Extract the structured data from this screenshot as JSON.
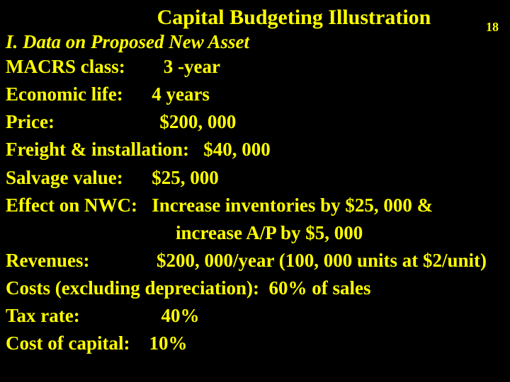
{
  "slide": {
    "title": "Capital Budgeting Illustration",
    "page_number": "18",
    "subtitle": "I. Data on Proposed New Asset",
    "rows": [
      {
        "label": "MACRS class:        3 -year"
      },
      {
        "label": "Economic life:      4 years"
      },
      {
        "label": "Price:                      $200, 000"
      },
      {
        "label": "Freight & installation:   $40, 000"
      },
      {
        "label": "Salvage value:      $25, 000"
      },
      {
        "label": "Effect on NWC:   Increase inventories by $25, 000 &"
      },
      {
        "label": "increase A/P by $5, 000",
        "indent": true
      },
      {
        "label": "Revenues:              $200, 000/year (100, 000 units at $2/unit)"
      },
      {
        "label": "Costs (excluding depreciation):  60% of sales"
      },
      {
        "label": "Tax rate:                 40%"
      },
      {
        "label": "Cost of capital:    10%"
      }
    ],
    "colors": {
      "background": "#000000",
      "text": "#ffff00"
    },
    "typography": {
      "title_fontsize": 30,
      "subtitle_fontsize": 27,
      "body_fontsize": 27,
      "font_family": "Times New Roman"
    }
  }
}
